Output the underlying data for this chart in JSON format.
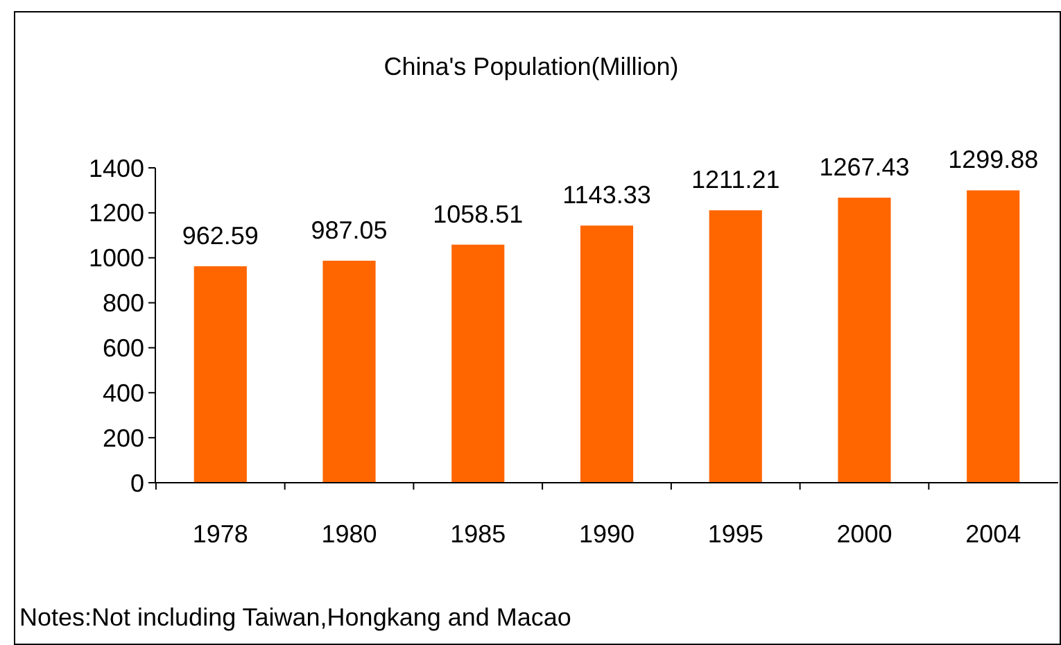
{
  "chart_data": {
    "type": "bar",
    "title": "China's Population(Million)",
    "categories": [
      "1978",
      "1980",
      "1985",
      "1990",
      "1995",
      "2000",
      "2004"
    ],
    "values": [
      962.59,
      987.05,
      1058.51,
      1143.33,
      1211.21,
      1267.43,
      1299.88
    ],
    "color": "#ff6600",
    "ylim": [
      0,
      1400
    ],
    "yticks": [
      0,
      200,
      400,
      600,
      800,
      1000,
      1200,
      1400
    ],
    "data_labels": true,
    "grid": false,
    "annotations": [
      "Notes:Not including Taiwan,Hongkang and Macao"
    ]
  }
}
